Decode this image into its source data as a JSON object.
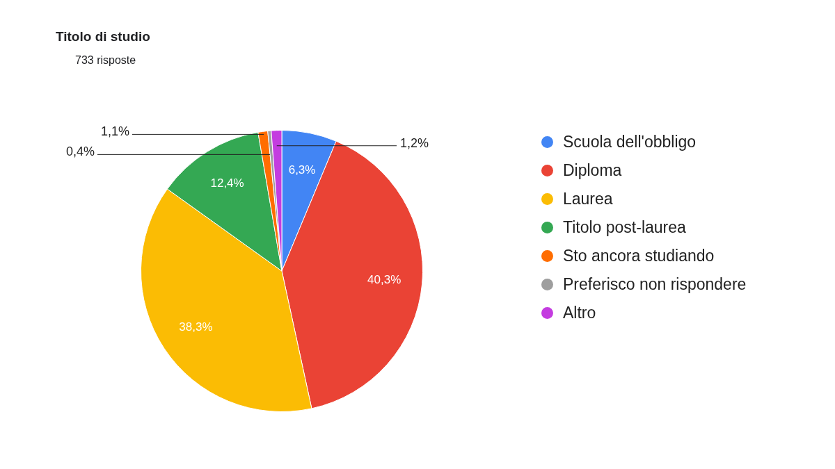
{
  "chart_data": {
    "type": "pie",
    "title": "Titolo di studio",
    "subtitle": "733 risposte",
    "categories": [
      "Scuola dell'obbligo",
      "Diploma",
      "Laurea",
      "Titolo post-laurea",
      "Sto ancora studiando",
      "Preferisco non rispondere",
      "Altro"
    ],
    "values": [
      6.3,
      40.3,
      38.3,
      12.4,
      1.1,
      0.4,
      1.2
    ],
    "colors": [
      "#4285f4",
      "#ea4335",
      "#fbbc04",
      "#34a853",
      "#ff6d01",
      "#9e9e9e",
      "#c43ce0"
    ],
    "value_labels": [
      "6,3%",
      "40,3%",
      "38,3%",
      "12,4%",
      "1,1%",
      "0,4%",
      "1,2%"
    ],
    "legend": "right"
  }
}
